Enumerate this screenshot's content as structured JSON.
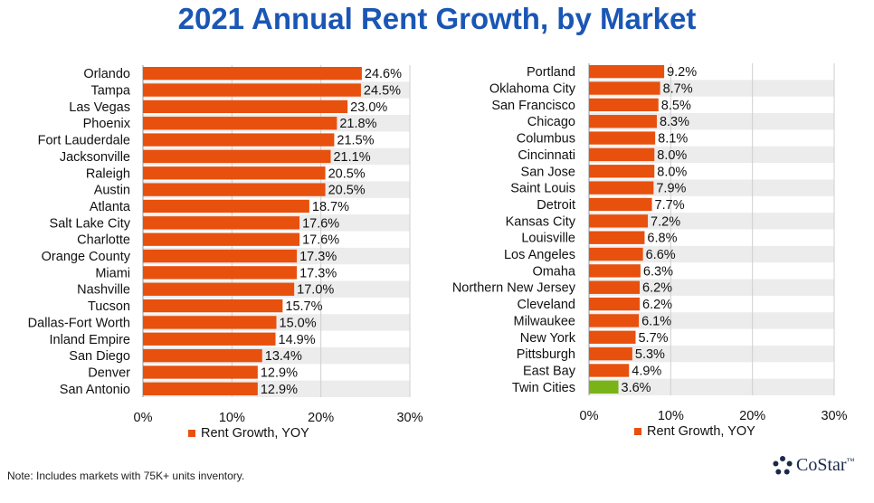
{
  "title": "2021 Annual Rent Growth, by Market",
  "note": "Note: Includes markets with 75K+ units inventory.",
  "logo": {
    "text": "CoStar",
    "tm": "™"
  },
  "colors": {
    "bar": "#e8500e",
    "highlight": "#7ab317",
    "title": "#1a56b4",
    "stripe": "#ececec",
    "grid": "#cfcfcf"
  },
  "chart_data": [
    {
      "type": "bar",
      "orientation": "horizontal",
      "categories": [
        "Orlando",
        "Tampa",
        "Las Vegas",
        "Phoenix",
        "Fort Lauderdale",
        "Jacksonville",
        "Raleigh",
        "Austin",
        "Atlanta",
        "Salt Lake City",
        "Charlotte",
        "Orange County",
        "Miami",
        "Nashville",
        "Tucson",
        "Dallas-Fort Worth",
        "Inland Empire",
        "San Diego",
        "Denver",
        "San Antonio"
      ],
      "values": [
        24.6,
        24.5,
        23.0,
        21.8,
        21.5,
        21.1,
        20.5,
        20.5,
        18.7,
        17.6,
        17.6,
        17.3,
        17.3,
        17.0,
        15.7,
        15.0,
        14.9,
        13.4,
        12.9,
        12.9
      ],
      "data_labels": [
        "24.6%",
        "24.5%",
        "23.0%",
        "21.8%",
        "21.5%",
        "21.1%",
        "20.5%",
        "20.5%",
        "18.7%",
        "17.6%",
        "17.6%",
        "17.3%",
        "17.3%",
        "17.0%",
        "15.7%",
        "15.0%",
        "14.9%",
        "13.4%",
        "12.9%",
        "12.9%"
      ],
      "xlim": [
        0,
        30
      ],
      "ticks": [
        0,
        10,
        20,
        30
      ],
      "tick_labels": [
        "0%",
        "10%",
        "20%",
        "30%"
      ],
      "legend": "Rent Growth, YOY",
      "legend_position": "bottom"
    },
    {
      "type": "bar",
      "orientation": "horizontal",
      "categories": [
        "Portland",
        "Oklahoma City",
        "San Francisco",
        "Chicago",
        "Columbus",
        "Cincinnati",
        "San Jose",
        "Saint Louis",
        "Detroit",
        "Kansas City",
        "Louisville",
        "Los Angeles",
        "Omaha",
        "Northern New Jersey",
        "Cleveland",
        "Milwaukee",
        "New York",
        "Pittsburgh",
        "East Bay",
        "Twin Cities"
      ],
      "values": [
        9.2,
        8.7,
        8.5,
        8.3,
        8.1,
        8.0,
        8.0,
        7.9,
        7.7,
        7.2,
        6.8,
        6.6,
        6.3,
        6.2,
        6.2,
        6.1,
        5.7,
        5.3,
        4.9,
        3.6
      ],
      "data_labels": [
        "9.2%",
        "8.7%",
        "8.5%",
        "8.3%",
        "8.1%",
        "8.0%",
        "8.0%",
        "7.9%",
        "7.7%",
        "7.2%",
        "6.8%",
        "6.6%",
        "6.3%",
        "6.2%",
        "6.2%",
        "6.1%",
        "5.7%",
        "5.3%",
        "4.9%",
        "3.6%"
      ],
      "highlight_category": "Twin Cities",
      "xlim": [
        0,
        30
      ],
      "ticks": [
        0,
        10,
        20,
        30
      ],
      "tick_labels": [
        "0%",
        "10%",
        "20%",
        "30%"
      ],
      "legend": "Rent Growth, YOY",
      "legend_position": "bottom"
    }
  ]
}
